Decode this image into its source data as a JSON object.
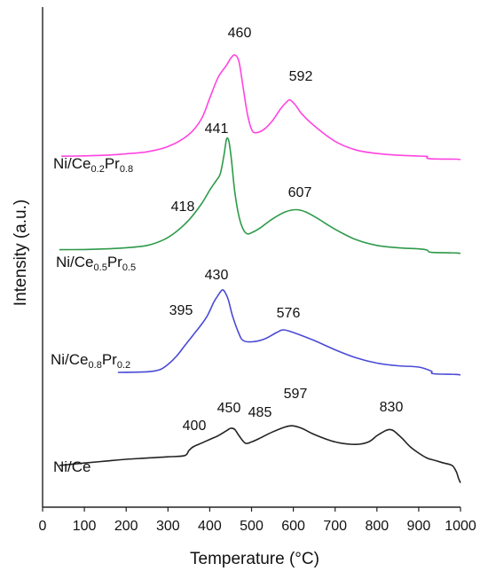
{
  "chart_data": {
    "type": "line",
    "title": "",
    "xlabel": "Temperature (°C)",
    "ylabel": "Intensity (a.u.)",
    "xlim": [
      0,
      1000
    ],
    "xticks": [
      0,
      100,
      200,
      300,
      400,
      500,
      600,
      700,
      800,
      900,
      1000
    ],
    "xtick_labels": [
      "0",
      "100",
      "200",
      "300",
      "400",
      "500",
      "600",
      "700",
      "800",
      "900",
      "1000"
    ],
    "y_ticks_shown": false,
    "grid": false,
    "series": [
      {
        "label_base": "Ni/Ce",
        "label_sub1": "0.2",
        "label_mid": "Pr",
        "label_sub2": "0.8",
        "color": "#ff44e0",
        "peaks": [
          {
            "x": 460,
            "label": "460"
          },
          {
            "x": 592,
            "label": "592"
          }
        ],
        "points": [
          [
            45,
            0.4
          ],
          [
            100,
            0.6
          ],
          [
            150,
            1.0
          ],
          [
            200,
            1.8
          ],
          [
            250,
            3
          ],
          [
            300,
            6
          ],
          [
            350,
            13
          ],
          [
            380,
            22
          ],
          [
            400,
            34
          ],
          [
            420,
            46
          ],
          [
            440,
            53
          ],
          [
            450,
            57
          ],
          [
            460,
            59
          ],
          [
            470,
            55
          ],
          [
            480,
            40
          ],
          [
            490,
            25
          ],
          [
            500,
            16
          ],
          [
            510,
            14
          ],
          [
            530,
            16
          ],
          [
            550,
            21
          ],
          [
            570,
            28
          ],
          [
            585,
            32
          ],
          [
            592,
            33
          ],
          [
            605,
            30
          ],
          [
            620,
            25
          ],
          [
            650,
            18
          ],
          [
            700,
            9
          ],
          [
            750,
            4
          ],
          [
            800,
            2
          ],
          [
            850,
            1
          ],
          [
            900,
            0.5
          ],
          [
            920,
            0.3
          ],
          [
            925,
            -1
          ],
          [
            990,
            -1.3
          ],
          [
            1000,
            -1.5
          ]
        ]
      },
      {
        "label_base": "Ni/Ce",
        "label_sub1": "0.5",
        "label_mid": "Pr",
        "label_sub2": "0.5",
        "color": "#2e9a4a",
        "peaks": [
          {
            "x": 418,
            "label": "418"
          },
          {
            "x": 441,
            "label": "441"
          },
          {
            "x": 607,
            "label": "607"
          }
        ],
        "points": [
          [
            40,
            0.3
          ],
          [
            100,
            0.5
          ],
          [
            150,
            1.0
          ],
          [
            200,
            2
          ],
          [
            250,
            4
          ],
          [
            290,
            9
          ],
          [
            320,
            16
          ],
          [
            350,
            26
          ],
          [
            380,
            40
          ],
          [
            400,
            52
          ],
          [
            415,
            60
          ],
          [
            425,
            66
          ],
          [
            433,
            80
          ],
          [
            438,
            92
          ],
          [
            441,
            97
          ],
          [
            446,
            94
          ],
          [
            452,
            78
          ],
          [
            460,
            50
          ],
          [
            470,
            29
          ],
          [
            480,
            18
          ],
          [
            490,
            14
          ],
          [
            500,
            15
          ],
          [
            520,
            19
          ],
          [
            550,
            27
          ],
          [
            580,
            33
          ],
          [
            607,
            35
          ],
          [
            630,
            33
          ],
          [
            660,
            27
          ],
          [
            700,
            18
          ],
          [
            750,
            9
          ],
          [
            800,
            4
          ],
          [
            850,
            2
          ],
          [
            900,
            1
          ],
          [
            920,
            0
          ],
          [
            930,
            -2
          ],
          [
            990,
            -2.5
          ],
          [
            1000,
            -3
          ]
        ]
      },
      {
        "label_base": "Ni/Ce",
        "label_sub1": "0.8",
        "label_mid": "Pr",
        "label_sub2": "0.2",
        "color": "#4a4ad6",
        "peaks": [
          {
            "x": 395,
            "label": "395"
          },
          {
            "x": 430,
            "label": "430"
          },
          {
            "x": 576,
            "label": "576"
          }
        ],
        "points": [
          [
            180,
            0
          ],
          [
            250,
            0.5
          ],
          [
            280,
            2
          ],
          [
            300,
            6
          ],
          [
            320,
            12
          ],
          [
            340,
            20
          ],
          [
            360,
            28
          ],
          [
            380,
            36
          ],
          [
            395,
            43
          ],
          [
            410,
            53
          ],
          [
            420,
            58
          ],
          [
            430,
            62
          ],
          [
            437,
            60
          ],
          [
            445,
            54
          ],
          [
            455,
            42
          ],
          [
            470,
            29
          ],
          [
            480,
            24
          ],
          [
            500,
            23
          ],
          [
            530,
            25
          ],
          [
            560,
            30
          ],
          [
            576,
            32
          ],
          [
            600,
            30
          ],
          [
            650,
            24
          ],
          [
            700,
            17
          ],
          [
            750,
            11
          ],
          [
            800,
            7
          ],
          [
            850,
            5
          ],
          [
            900,
            4
          ],
          [
            930,
            1
          ],
          [
            935,
            -1
          ],
          [
            990,
            -1.5
          ],
          [
            1000,
            -2
          ]
        ]
      },
      {
        "label_base": "Ni/Ce",
        "label_sub1": "",
        "label_mid": "",
        "label_sub2": "",
        "color": "#222222",
        "peaks": [
          {
            "x": 400,
            "label": "400"
          },
          {
            "x": 450,
            "label": "450"
          },
          {
            "x": 485,
            "label": "485"
          },
          {
            "x": 597,
            "label": "597"
          },
          {
            "x": 830,
            "label": "830"
          }
        ],
        "points": [
          [
            40,
            0
          ],
          [
            100,
            2
          ],
          [
            150,
            3.5
          ],
          [
            200,
            5
          ],
          [
            250,
            6
          ],
          [
            300,
            7
          ],
          [
            340,
            8
          ],
          [
            350,
            12
          ],
          [
            360,
            15
          ],
          [
            380,
            18
          ],
          [
            400,
            21
          ],
          [
            420,
            24
          ],
          [
            440,
            28
          ],
          [
            450,
            30
          ],
          [
            460,
            29
          ],
          [
            470,
            24
          ],
          [
            485,
            18
          ],
          [
            500,
            19
          ],
          [
            520,
            22
          ],
          [
            550,
            27
          ],
          [
            580,
            31
          ],
          [
            597,
            32
          ],
          [
            620,
            30
          ],
          [
            650,
            25
          ],
          [
            700,
            19
          ],
          [
            750,
            17
          ],
          [
            780,
            19
          ],
          [
            800,
            24
          ],
          [
            820,
            28
          ],
          [
            830,
            29
          ],
          [
            840,
            28
          ],
          [
            860,
            22
          ],
          [
            880,
            15
          ],
          [
            900,
            10
          ],
          [
            920,
            6
          ],
          [
            940,
            4
          ],
          [
            960,
            2
          ],
          [
            980,
            0
          ],
          [
            990,
            -5
          ],
          [
            995,
            -10
          ],
          [
            1000,
            -14
          ]
        ]
      }
    ]
  }
}
